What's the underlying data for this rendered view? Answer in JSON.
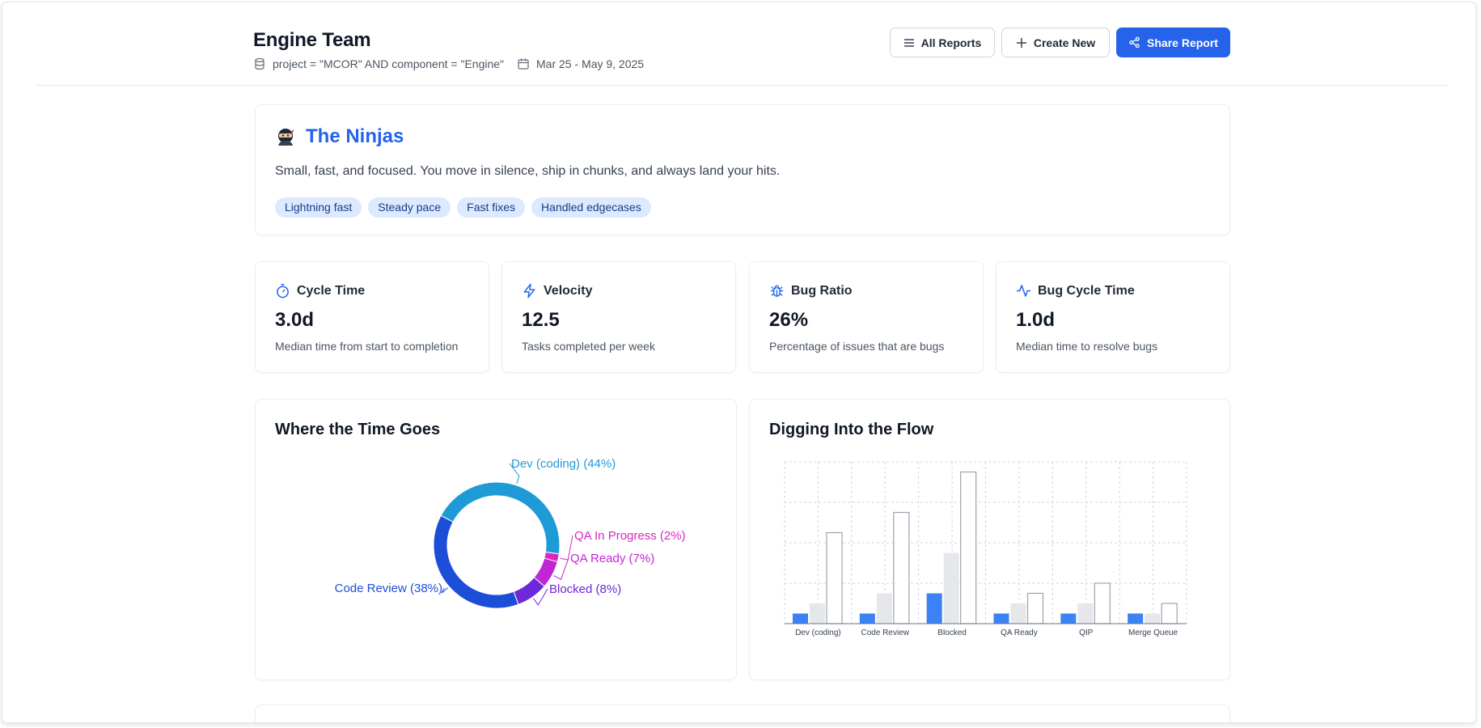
{
  "header": {
    "title": "Engine Team",
    "query": "project = \"MCOR\" AND component = \"Engine\"",
    "date_range": "Mar 25 - May 9, 2025",
    "buttons": {
      "all_reports": "All Reports",
      "create_new": "Create New",
      "share_report": "Share Report"
    }
  },
  "persona": {
    "emoji": "🥷",
    "name": "The Ninjas",
    "description": "Small, fast, and focused. You move in silence, ship in chunks, and always land your hits.",
    "tags": [
      "Lightning fast",
      "Steady pace",
      "Fast fixes",
      "Handled edgecases"
    ]
  },
  "metrics": [
    {
      "icon": "timer-icon",
      "label": "Cycle Time",
      "value": "3.0d",
      "desc": "Median time from start to completion"
    },
    {
      "icon": "lightning-icon",
      "label": "Velocity",
      "value": "12.5",
      "desc": "Tasks completed per week"
    },
    {
      "icon": "bug-icon",
      "label": "Bug Ratio",
      "value": "26%",
      "desc": "Percentage of issues that are bugs"
    },
    {
      "icon": "activity-icon",
      "label": "Bug Cycle Time",
      "value": "1.0d",
      "desc": "Median time to resolve bugs"
    }
  ],
  "charts": {
    "time_title": "Where the Time Goes",
    "flow_title": "Digging Into the Flow"
  },
  "chart_data": [
    {
      "type": "pie",
      "title": "Where the Time Goes",
      "slices": [
        {
          "label": "Dev (coding) (44%)",
          "value": 44,
          "color": "#1e9bd7"
        },
        {
          "label": "QA In Progress (2%)",
          "value": 2,
          "color": "#db27c0"
        },
        {
          "label": "QA Ready (7%)",
          "value": 7,
          "color": "#c026d3"
        },
        {
          "label": "Blocked (8%)",
          "value": 8,
          "color": "#6d28d9"
        },
        {
          "label": "Code Review (38%)",
          "value": 38,
          "color": "#1d4ed8"
        }
      ]
    },
    {
      "type": "bar",
      "title": "Digging Into the Flow",
      "categories": [
        "Dev (coding)",
        "Code Review",
        "Blocked",
        "QA Ready",
        "QIP",
        "Merge Queue"
      ],
      "series": [
        {
          "values": [
            0.5,
            0.5,
            1.5,
            0.5,
            0.5,
            0.5
          ],
          "color": "#3b82f6",
          "style": "solid"
        },
        {
          "values": [
            1.0,
            1.5,
            3.5,
            1.0,
            1.0,
            0.5
          ],
          "color": "#e5e7eb",
          "style": "solid"
        },
        {
          "values": [
            4.5,
            5.5,
            7.5,
            1.5,
            2.0,
            1.0
          ],
          "color": "#ffffff",
          "stroke": "#9ca3af",
          "style": "outline"
        }
      ],
      "ylim": [
        0,
        8
      ],
      "grid": true
    }
  ]
}
